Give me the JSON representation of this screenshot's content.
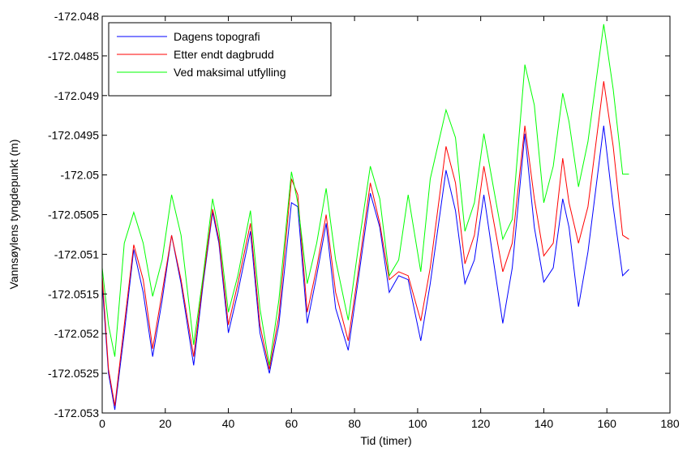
{
  "chart_data": {
    "type": "line",
    "xlabel": "Tid (timer)",
    "ylabel": "Vannsøylens tyngdepunkt (m)",
    "x": [
      0,
      2,
      4,
      7,
      10,
      13,
      16,
      19,
      22,
      25,
      29,
      32,
      35,
      37,
      40,
      43,
      47,
      50,
      53,
      56,
      60,
      62,
      65,
      68,
      71,
      74,
      78,
      81,
      85,
      88,
      91,
      94,
      97,
      101,
      104,
      109,
      112,
      115,
      118,
      121,
      124,
      127,
      130,
      134,
      137,
      140,
      143,
      146,
      148,
      151,
      154,
      159,
      162,
      165,
      167
    ],
    "series": [
      {
        "name": "Dagens topografi",
        "color": "#0000ff",
        "values": [
          -172.05137,
          -172.0525,
          -172.05296,
          -172.05199,
          -172.05094,
          -172.05148,
          -172.05229,
          -172.05158,
          -172.05076,
          -172.05137,
          -172.0524,
          -172.05137,
          -172.05047,
          -172.05086,
          -172.05199,
          -172.05148,
          -172.05071,
          -172.05199,
          -172.0525,
          -172.05189,
          -172.05035,
          -172.0504,
          -172.05187,
          -172.05127,
          -172.05061,
          -172.05168,
          -172.05221,
          -172.05137,
          -172.05023,
          -172.05066,
          -172.05148,
          -172.05127,
          -172.05132,
          -172.05209,
          -172.05137,
          -172.04994,
          -172.05045,
          -172.05137,
          -172.05107,
          -172.05025,
          -172.05107,
          -172.05187,
          -172.05117,
          -172.04948,
          -172.05066,
          -172.05135,
          -172.05117,
          -172.0503,
          -172.05066,
          -172.05166,
          -172.05097,
          -172.04938,
          -172.0504,
          -172.05127,
          -172.05119
        ]
      },
      {
        "name": "Etter endt dagbrudd",
        "color": "#ff0000",
        "values": [
          -172.05127,
          -172.05245,
          -172.05291,
          -172.05189,
          -172.05088,
          -172.05132,
          -172.05219,
          -172.05148,
          -172.05076,
          -172.05132,
          -172.05229,
          -172.05132,
          -172.05043,
          -172.05081,
          -172.05189,
          -172.05137,
          -172.05061,
          -172.05189,
          -172.05245,
          -172.05178,
          -172.05005,
          -172.05025,
          -172.05173,
          -172.05117,
          -172.0505,
          -172.05148,
          -172.05209,
          -172.05127,
          -172.0501,
          -172.05061,
          -172.05132,
          -172.05122,
          -172.05127,
          -172.05184,
          -172.05117,
          -172.04964,
          -172.0501,
          -172.05112,
          -172.05076,
          -172.04989,
          -172.05056,
          -172.05122,
          -172.05086,
          -172.04938,
          -172.0503,
          -172.05102,
          -172.05086,
          -172.04979,
          -172.05035,
          -172.05086,
          -172.0504,
          -172.04882,
          -172.04964,
          -172.05076,
          -172.05081
        ]
      },
      {
        "name": "Ved maksimal utfylling",
        "color": "#00ff00",
        "values": [
          -172.05117,
          -172.05189,
          -172.05229,
          -172.05086,
          -172.05047,
          -172.05086,
          -172.05153,
          -172.05107,
          -172.05025,
          -172.05076,
          -172.05214,
          -172.05127,
          -172.0503,
          -172.05071,
          -172.05173,
          -172.05127,
          -172.05045,
          -172.05168,
          -172.0524,
          -172.05158,
          -172.04996,
          -172.05035,
          -172.05137,
          -172.05086,
          -172.05017,
          -172.05107,
          -172.05183,
          -172.05097,
          -172.04989,
          -172.0503,
          -172.05127,
          -172.05107,
          -172.05025,
          -172.05122,
          -172.05005,
          -172.04918,
          -172.04953,
          -172.05071,
          -172.05035,
          -172.04948,
          -172.05015,
          -172.05081,
          -172.05056,
          -172.04861,
          -172.04912,
          -172.05035,
          -172.04989,
          -172.04897,
          -172.04933,
          -172.05015,
          -172.04958,
          -172.0481,
          -172.04892,
          -172.04999,
          -172.04999
        ]
      }
    ],
    "xlim": [
      0,
      180
    ],
    "xticks": [
      0,
      20,
      40,
      60,
      80,
      100,
      120,
      140,
      160,
      180
    ],
    "ylim": [
      -172.053,
      -172.048
    ],
    "yticks": [
      -172.053,
      -172.0525,
      -172.052,
      -172.0515,
      -172.051,
      -172.0505,
      -172.05,
      -172.0495,
      -172.049,
      -172.0485,
      -172.048
    ],
    "legend": "upper-left"
  }
}
